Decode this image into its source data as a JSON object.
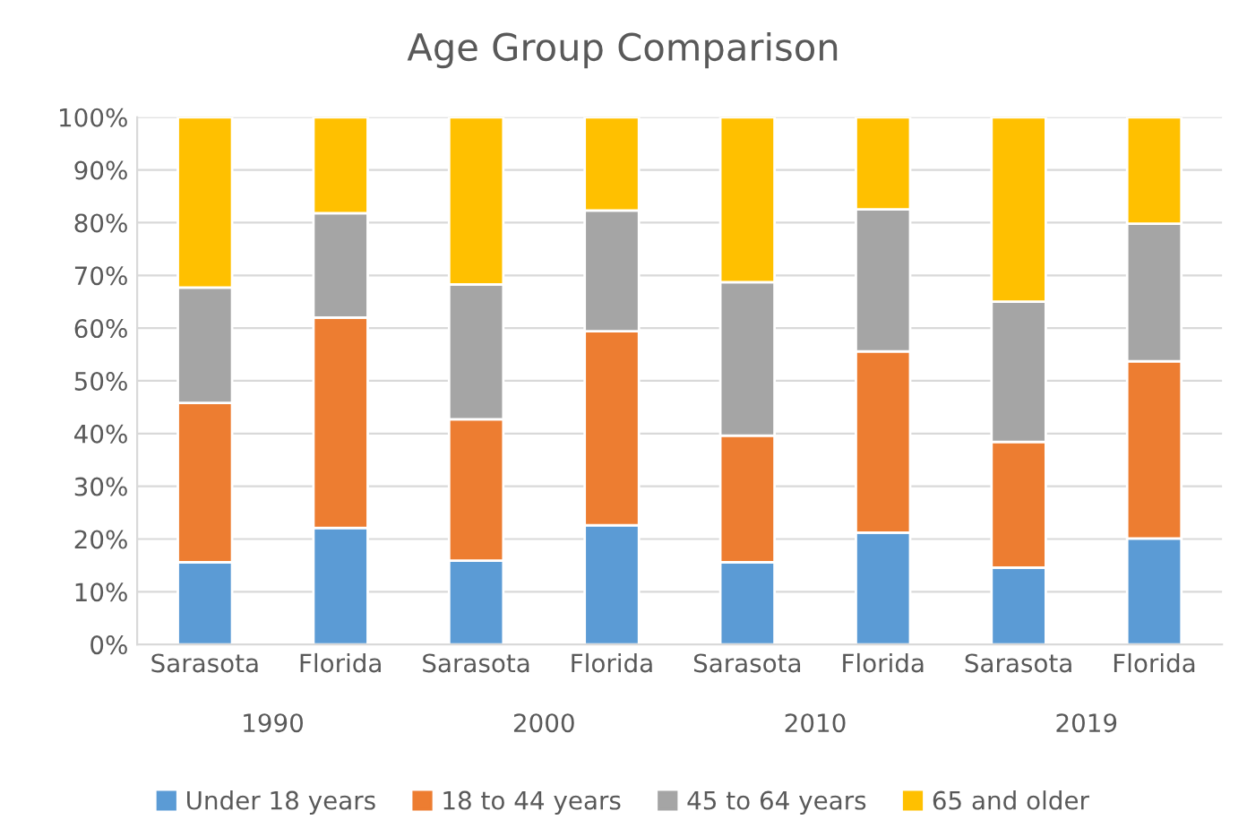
{
  "chart_data": {
    "type": "bar",
    "title": "Age Group Comparison",
    "stacked": true,
    "categories": [
      "Sarasota",
      "Florida",
      "Sarasota",
      "Florida",
      "Sarasota",
      "Florida",
      "Sarasota",
      "Florida"
    ],
    "series": [
      {
        "name": "Under 18 years",
        "color": "#5b9bd5",
        "values": [
          15.6,
          22.1,
          15.9,
          22.6,
          15.6,
          21.2,
          14.6,
          20.1
        ]
      },
      {
        "name": "18 to 44 years",
        "color": "#ed7d31",
        "values": [
          30.2,
          39.9,
          26.8,
          36.8,
          24.0,
          34.4,
          23.8,
          33.6
        ]
      },
      {
        "name": "45 to 64 years",
        "color": "#a5a5a5",
        "values": [
          21.9,
          19.8,
          25.6,
          22.9,
          29.1,
          26.9,
          26.6,
          26.1
        ]
      },
      {
        "name": "65 and older",
        "color": "#ffc000",
        "values": [
          32.3,
          18.2,
          31.7,
          17.7,
          31.3,
          17.5,
          35.0,
          20.2
        ]
      }
    ],
    "annotations": [
      "1990",
      "2000",
      "2010",
      "2019"
    ],
    "ylim": [
      0,
      100
    ],
    "yticks": [
      {
        "value": 0,
        "label": "0%"
      },
      {
        "value": 10,
        "label": "10%"
      },
      {
        "value": 20,
        "label": "20%"
      },
      {
        "value": 30,
        "label": "30%"
      },
      {
        "value": 40,
        "label": "40%"
      },
      {
        "value": 50,
        "label": "50%"
      },
      {
        "value": 60,
        "label": "60%"
      },
      {
        "value": 70,
        "label": "70%"
      },
      {
        "value": 80,
        "label": "80%"
      },
      {
        "value": 90,
        "label": "90%"
      },
      {
        "value": 100,
        "label": "100%"
      }
    ],
    "grid": "y",
    "legend": "bottom"
  }
}
